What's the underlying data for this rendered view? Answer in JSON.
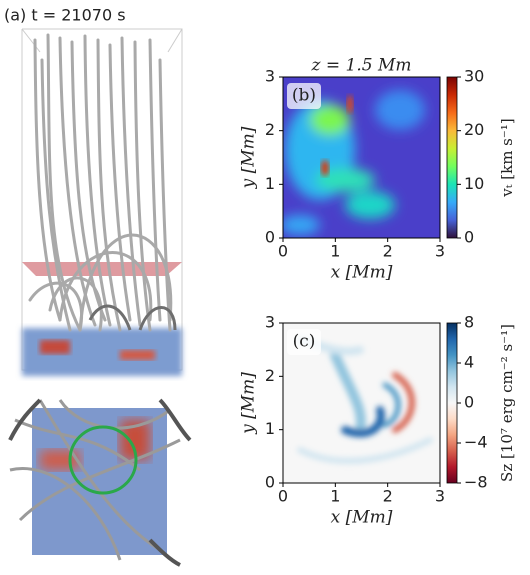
{
  "panel_a": {
    "title": "(a) t = 21070 s"
  },
  "chart_data": [
    {
      "type": "heatmap",
      "title": "z = 1.5 Mm",
      "panel_label": "(b)",
      "x_label": "x [Mm]",
      "y_label": "y [Mm]",
      "xlim": [
        0,
        3
      ],
      "ylim": [
        0,
        3
      ],
      "xticks": [
        0,
        1,
        2,
        3
      ],
      "yticks": [
        0,
        1,
        2,
        3
      ],
      "colorbar": {
        "label": "vₜ [km s⁻¹]",
        "lim": [
          0,
          30
        ],
        "ticks": [
          0,
          10,
          20,
          30
        ],
        "colors": [
          "#30123b",
          "#4662d7",
          "#36aaf9",
          "#1ae4b6",
          "#72fe5e",
          "#c8ef34",
          "#faba39",
          "#f66b19",
          "#ca2a04",
          "#7a0403"
        ]
      }
    },
    {
      "type": "heatmap",
      "panel_label": "(c)",
      "x_label": "x [Mm]",
      "y_label": "y [Mm]",
      "xlim": [
        0,
        3
      ],
      "ylim": [
        0,
        3
      ],
      "xticks": [
        0,
        1,
        2,
        3
      ],
      "yticks": [
        0,
        1,
        2,
        3
      ],
      "colorbar": {
        "label": "Sz [10⁷ erg cm⁻² s⁻¹]",
        "lim": [
          -8,
          8
        ],
        "ticks": [
          {
            "value": -8,
            "label": "−8"
          },
          {
            "value": -4,
            "label": "−4"
          },
          0,
          4,
          8
        ],
        "colors": [
          "#67001f",
          "#b2182b",
          "#d6604d",
          "#f4a582",
          "#fddbc7",
          "#f7f7f7",
          "#d1e5f0",
          "#92c5de",
          "#4393c3",
          "#2166ac",
          "#053061"
        ]
      }
    }
  ]
}
